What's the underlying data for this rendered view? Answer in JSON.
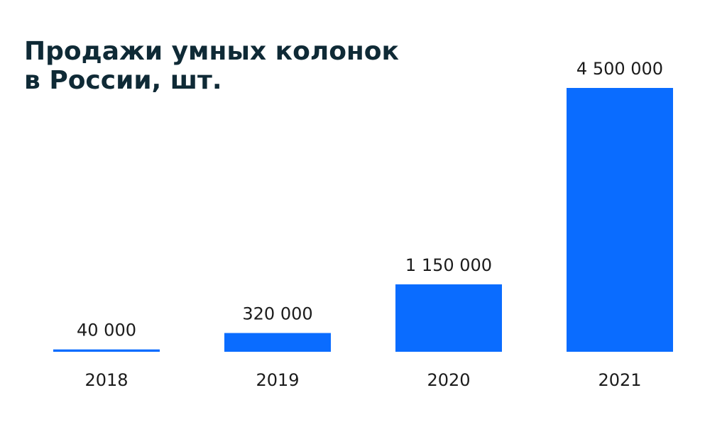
{
  "chart_data": {
    "type": "bar",
    "title_lines": [
      "Продажи умных колонок",
      "в России, шт."
    ],
    "categories": [
      "2018",
      "2019",
      "2020",
      "2021"
    ],
    "values": [
      40000,
      320000,
      1150000,
      4500000
    ],
    "value_labels": [
      "40 000",
      "320 000",
      "1 150 000",
      "4 500 000"
    ],
    "ylim": [
      0,
      4500000
    ],
    "grid": false,
    "legend": "none",
    "bar_color": "#0a6cff",
    "title_color": "#0f2a36",
    "text_color": "#1b1b1b"
  }
}
